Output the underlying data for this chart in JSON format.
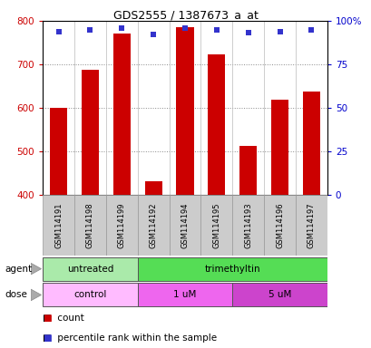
{
  "title": "GDS2555 / 1387673_a_at",
  "samples": [
    "GSM114191",
    "GSM114198",
    "GSM114199",
    "GSM114192",
    "GSM114194",
    "GSM114195",
    "GSM114193",
    "GSM114196",
    "GSM114197"
  ],
  "counts": [
    600,
    688,
    770,
    432,
    785,
    722,
    513,
    618,
    638
  ],
  "percentiles": [
    94,
    95,
    96,
    92,
    96,
    95,
    93,
    94,
    95
  ],
  "ylim_left": [
    400,
    800
  ],
  "ylim_right": [
    0,
    100
  ],
  "yticks_left": [
    400,
    500,
    600,
    700,
    800
  ],
  "yticks_right": [
    0,
    25,
    50,
    75,
    100
  ],
  "bar_color": "#cc0000",
  "dot_color": "#3333cc",
  "bar_baseline": 400,
  "agent_labels": [
    {
      "text": "untreated",
      "start": 0,
      "end": 3,
      "color": "#aaeaaa"
    },
    {
      "text": "trimethyltin",
      "start": 3,
      "end": 9,
      "color": "#55dd55"
    }
  ],
  "dose_labels": [
    {
      "text": "control",
      "start": 0,
      "end": 3,
      "color": "#ffbbff"
    },
    {
      "text": "1 uM",
      "start": 3,
      "end": 6,
      "color": "#ee66ee"
    },
    {
      "text": "5 uM",
      "start": 6,
      "end": 9,
      "color": "#cc44cc"
    }
  ],
  "legend_count_color": "#cc0000",
  "legend_dot_color": "#3333cc",
  "xlabel_agent": "agent",
  "xlabel_dose": "dose",
  "grid_color": "#888888",
  "tick_label_color_left": "#cc0000",
  "tick_label_color_right": "#0000cc",
  "background_color": "#ffffff",
  "sample_bg_color": "#cccccc",
  "sample_border_color": "#999999"
}
